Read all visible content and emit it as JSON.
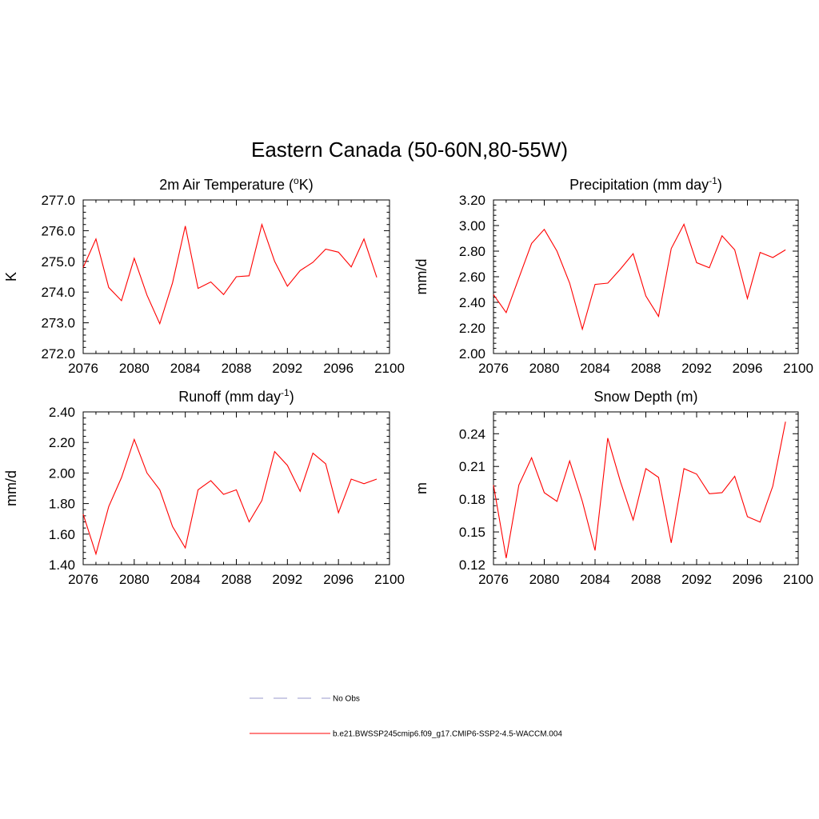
{
  "figure": {
    "title": "Eastern Canada (50-60N,80-55W)"
  },
  "legend": {
    "entries": [
      {
        "label": "No Obs",
        "color": "#9999cc",
        "style": "dashed"
      },
      {
        "label": "b.e21.BWSSP245cmip6.f09_g17.CMIP6-SSP2-4.5-WACCM.004",
        "color": "#ff0000",
        "style": "solid"
      }
    ]
  },
  "chart_data": [
    {
      "type": "line",
      "title_main": "2m Air Temperature (",
      "title_sup": "o",
      "title_tail": "K)",
      "ylabel": "K",
      "xlim": [
        2076,
        2100
      ],
      "ylim": [
        272.0,
        277.0
      ],
      "xticks": [
        "2076",
        "2080",
        "2084",
        "2088",
        "2092",
        "2096",
        "2100"
      ],
      "yticks": [
        "272.0",
        "273.0",
        "274.0",
        "275.0",
        "276.0",
        "277.0"
      ],
      "series": [
        {
          "color": "#ff0000",
          "x": [
            2076,
            2077,
            2078,
            2079,
            2080,
            2081,
            2082,
            2083,
            2084,
            2085,
            2086,
            2087,
            2088,
            2089,
            2090,
            2091,
            2092,
            2093,
            2094,
            2095,
            2096,
            2097,
            2098,
            2099
          ],
          "y": [
            274.8,
            275.73,
            274.15,
            273.72,
            275.1,
            273.9,
            272.97,
            274.3,
            276.15,
            274.12,
            274.33,
            273.92,
            274.5,
            274.53,
            276.2,
            275.0,
            274.19,
            274.7,
            274.97,
            275.4,
            275.3,
            274.82,
            275.73,
            274.48
          ]
        }
      ]
    },
    {
      "type": "line",
      "title_main": "Precipitation (mm day",
      "title_sup": "-1",
      "title_tail": ")",
      "ylabel": "mm/d",
      "xlim": [
        2076,
        2100
      ],
      "ylim": [
        2.0,
        3.2
      ],
      "xticks": [
        "2076",
        "2080",
        "2084",
        "2088",
        "2092",
        "2096",
        "2100"
      ],
      "yticks": [
        "2.00",
        "2.20",
        "2.40",
        "2.60",
        "2.80",
        "3.00",
        "3.20"
      ],
      "series": [
        {
          "color": "#ff0000",
          "x": [
            2076,
            2077,
            2078,
            2079,
            2080,
            2081,
            2082,
            2083,
            2084,
            2085,
            2086,
            2087,
            2088,
            2089,
            2090,
            2091,
            2092,
            2093,
            2094,
            2095,
            2096,
            2097,
            2098,
            2099
          ],
          "y": [
            2.46,
            2.32,
            2.59,
            2.86,
            2.97,
            2.8,
            2.55,
            2.19,
            2.54,
            2.55,
            2.66,
            2.78,
            2.45,
            2.29,
            2.82,
            3.01,
            2.71,
            2.67,
            2.92,
            2.81,
            2.43,
            2.79,
            2.75,
            2.81
          ]
        }
      ]
    },
    {
      "type": "line",
      "title_main": "Runoff (mm day",
      "title_sup": "-1",
      "title_tail": ")",
      "ylabel": "mm/d",
      "xlim": [
        2076,
        2100
      ],
      "ylim": [
        1.4,
        2.4
      ],
      "xticks": [
        "2076",
        "2080",
        "2084",
        "2088",
        "2092",
        "2096",
        "2100"
      ],
      "yticks": [
        "1.40",
        "1.60",
        "1.80",
        "2.00",
        "2.20",
        "2.40"
      ],
      "series": [
        {
          "color": "#ff0000",
          "x": [
            2076,
            2077,
            2078,
            2079,
            2080,
            2081,
            2082,
            2083,
            2084,
            2085,
            2086,
            2087,
            2088,
            2089,
            2090,
            2091,
            2092,
            2093,
            2094,
            2095,
            2096,
            2097,
            2098,
            2099
          ],
          "y": [
            1.73,
            1.47,
            1.78,
            1.97,
            2.22,
            2.0,
            1.89,
            1.65,
            1.51,
            1.89,
            1.95,
            1.86,
            1.89,
            1.68,
            1.82,
            2.14,
            2.05,
            1.88,
            2.13,
            2.06,
            1.74,
            1.96,
            1.93,
            1.96
          ]
        }
      ]
    },
    {
      "type": "line",
      "title_main": "Snow Depth (m)",
      "title_sup": "",
      "title_tail": "",
      "ylabel": "m",
      "xlim": [
        2076,
        2100
      ],
      "ylim": [
        0.12,
        0.26
      ],
      "xticks": [
        "2076",
        "2080",
        "2084",
        "2088",
        "2092",
        "2096",
        "2100"
      ],
      "yticks": [
        "0.12",
        "0.15",
        "0.18",
        "0.21",
        "0.24"
      ],
      "ytick_values": [
        0.12,
        0.15,
        0.18,
        0.21,
        0.24
      ],
      "series": [
        {
          "color": "#ff0000",
          "x": [
            2076,
            2077,
            2078,
            2079,
            2080,
            2081,
            2082,
            2083,
            2084,
            2085,
            2086,
            2087,
            2088,
            2089,
            2090,
            2091,
            2092,
            2093,
            2094,
            2095,
            2096,
            2097,
            2098,
            2099
          ],
          "y": [
            0.193,
            0.126,
            0.193,
            0.218,
            0.186,
            0.178,
            0.215,
            0.178,
            0.133,
            0.236,
            0.196,
            0.161,
            0.208,
            0.2,
            0.14,
            0.208,
            0.203,
            0.185,
            0.186,
            0.201,
            0.164,
            0.159,
            0.192,
            0.251
          ]
        }
      ]
    }
  ]
}
